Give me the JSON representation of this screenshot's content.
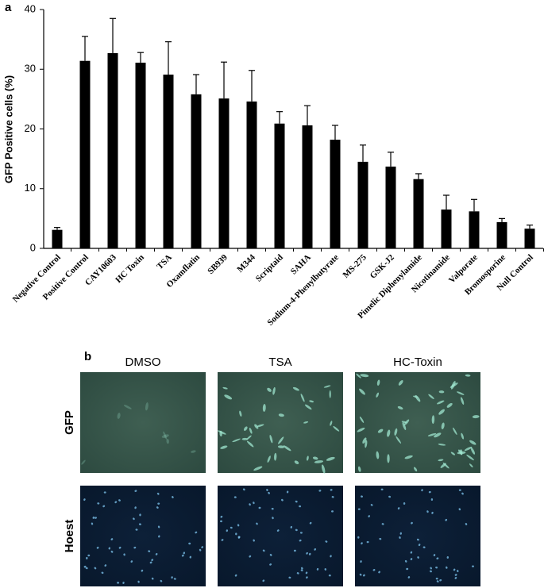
{
  "chart_data": {
    "type": "bar",
    "panel_label": "a",
    "y_label": "GFP Positive cells (%)",
    "categories": [
      "Negative Control",
      "Positive Control",
      "CAY10603",
      "HC Toxin",
      "TSA",
      "Oxamflatin",
      "SB939",
      "M344",
      "Scriptaid",
      "SAHA",
      "Sodium-4-Phenylbutyrate",
      "MS-275",
      "GSK-J2",
      "Pimelic Diphenylamide",
      "Nicotinamide",
      "Valporate",
      "Bromosporine",
      "Null Control"
    ],
    "values": [
      3.1,
      31.4,
      32.7,
      31.1,
      29.1,
      25.8,
      25.1,
      24.6,
      20.9,
      20.6,
      18.2,
      14.5,
      13.7,
      11.6,
      6.5,
      6.2,
      4.4,
      3.3
    ],
    "errors": [
      0.4,
      4.1,
      5.8,
      1.7,
      5.5,
      3.3,
      6.1,
      5.2,
      2.0,
      3.3,
      2.4,
      2.8,
      2.4,
      0.9,
      2.4,
      2.0,
      0.6,
      0.6
    ],
    "color": "#000000",
    "ylim": [
      0,
      40
    ],
    "yticks": [
      0,
      10,
      20,
      30,
      40
    ],
    "grid": false
  },
  "panel_b": {
    "panel_label": "b",
    "columns": [
      "DMSO",
      "TSA",
      "HC-Toxin"
    ],
    "rows": [
      "GFP",
      "Hoest"
    ]
  }
}
